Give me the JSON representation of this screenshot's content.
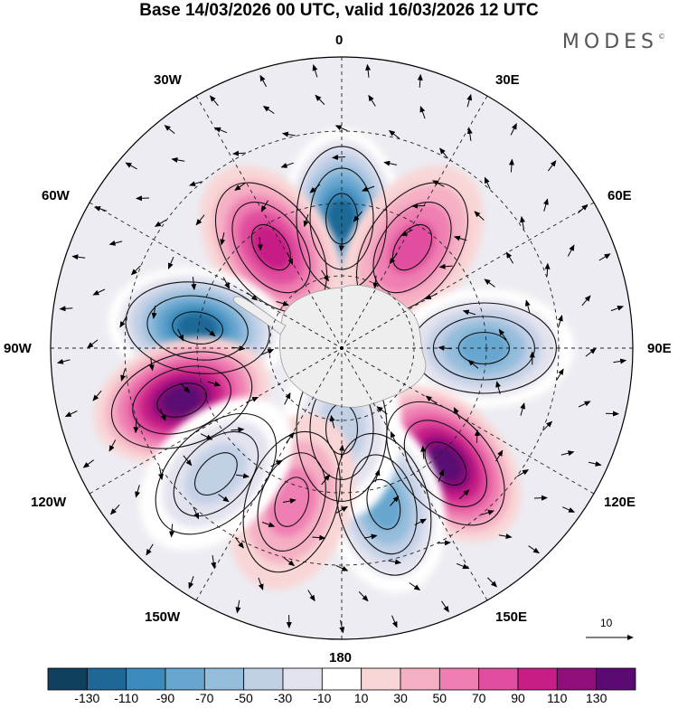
{
  "title": "Base 14/03/2026 00 UTC, valid 16/03/2026 12 UTC",
  "logo": "MODES",
  "logo_mark": "©",
  "longitude_labels": {
    "lon_0": "0",
    "lon_30e": "30E",
    "lon_60e": "60E",
    "lon_90e": "90E",
    "lon_120e": "120E",
    "lon_150e": "150E",
    "lon_180": "180",
    "lon_150w": "150W",
    "lon_120w": "120W",
    "lon_90w": "90W",
    "lon_60w": "60W",
    "lon_30w": "30W"
  },
  "vector_reference": "10",
  "colorbar": {
    "labels": [
      "-130",
      "-110",
      "-90",
      "-70",
      "-50",
      "-30",
      "-10",
      "10",
      "30",
      "50",
      "70",
      "90",
      "110",
      "130"
    ],
    "colors": [
      "#10405f",
      "#1e6796",
      "#3b8cbd",
      "#66a6cf",
      "#95bddc",
      "#c2d0e6",
      "#e3e3ef",
      "#ffffff",
      "#f9d6d6",
      "#f5b0c4",
      "#ef7fb2",
      "#e14d9f",
      "#c71d86",
      "#8e0e7c",
      "#5a0a72"
    ]
  },
  "anomaly_centers": [
    {
      "sign": "negative",
      "value": -130,
      "lon_deg": 0,
      "colat_deg": 40
    },
    {
      "sign": "positive",
      "value": 90,
      "lon_deg": -35,
      "colat_deg": 38
    },
    {
      "sign": "positive",
      "value": 70,
      "lon_deg": 35,
      "colat_deg": 38
    },
    {
      "sign": "negative",
      "value": -130,
      "lon_deg": -82,
      "colat_deg": 45
    },
    {
      "sign": "negative",
      "value": -90,
      "lon_deg": 90,
      "colat_deg": 44
    },
    {
      "sign": "positive",
      "value": 130,
      "lon_deg": -108,
      "colat_deg": 52
    },
    {
      "sign": "positive",
      "value": 130,
      "lon_deg": 138,
      "colat_deg": 48
    },
    {
      "sign": "negative",
      "value": -90,
      "lon_deg": 165,
      "colat_deg": 50
    },
    {
      "sign": "negative",
      "value": -50,
      "lon_deg": 180,
      "colat_deg": 25
    },
    {
      "sign": "positive",
      "value": 50,
      "lon_deg": -162,
      "colat_deg": 50
    },
    {
      "sign": "negative",
      "value": -50,
      "lon_deg": -135,
      "colat_deg": 55
    }
  ]
}
